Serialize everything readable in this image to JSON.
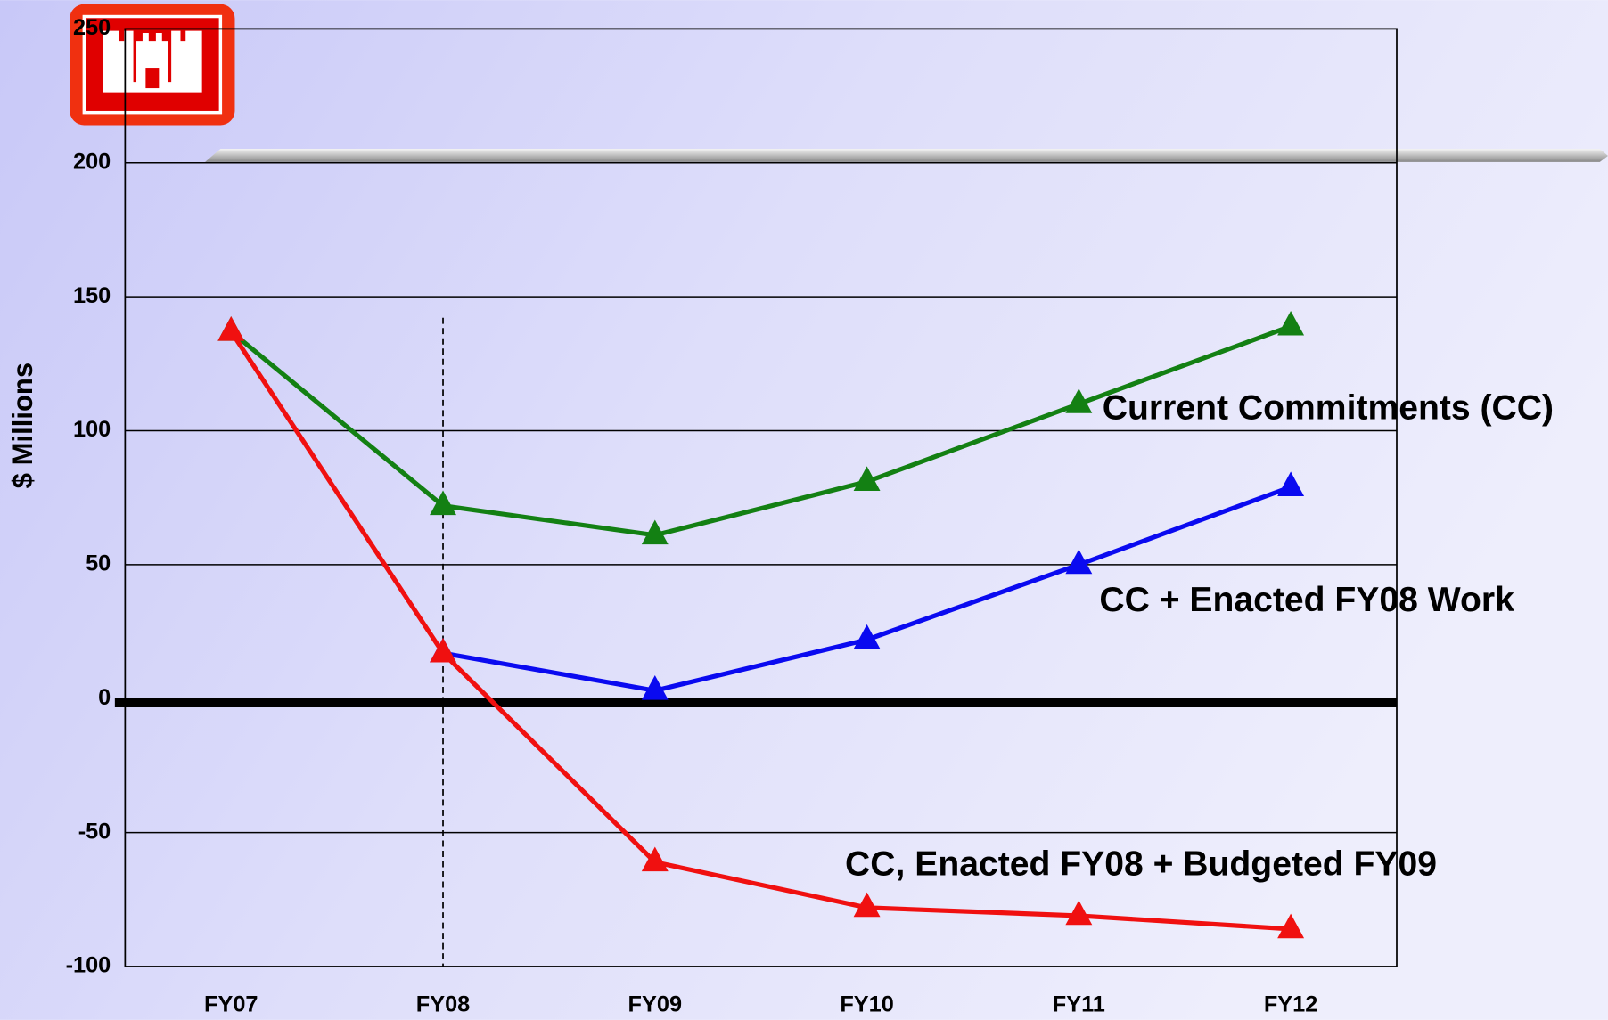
{
  "chart_data": {
    "type": "line",
    "ylabel": "$ Millions",
    "categories": [
      "FY07",
      "FY08",
      "FY09",
      "FY10",
      "FY11",
      "FY12"
    ],
    "series": [
      {
        "name": "Current Commitments (CC)",
        "color": "#138013",
        "values": [
          137,
          72,
          61,
          81,
          110,
          139
        ]
      },
      {
        "name": "CC + Enacted FY08 Work",
        "color": "#0a0af0",
        "values": [
          null,
          17,
          3,
          22,
          50,
          79
        ]
      },
      {
        "name": "CC, Enacted FY08 + Budgeted FY09",
        "color": "#f01010",
        "values": [
          137,
          17,
          -61,
          -78,
          -81,
          -86
        ]
      }
    ],
    "ylim": [
      -100,
      250
    ],
    "yticks": [
      -100,
      -50,
      0,
      50,
      100,
      150,
      200,
      250
    ],
    "grid": true
  }
}
